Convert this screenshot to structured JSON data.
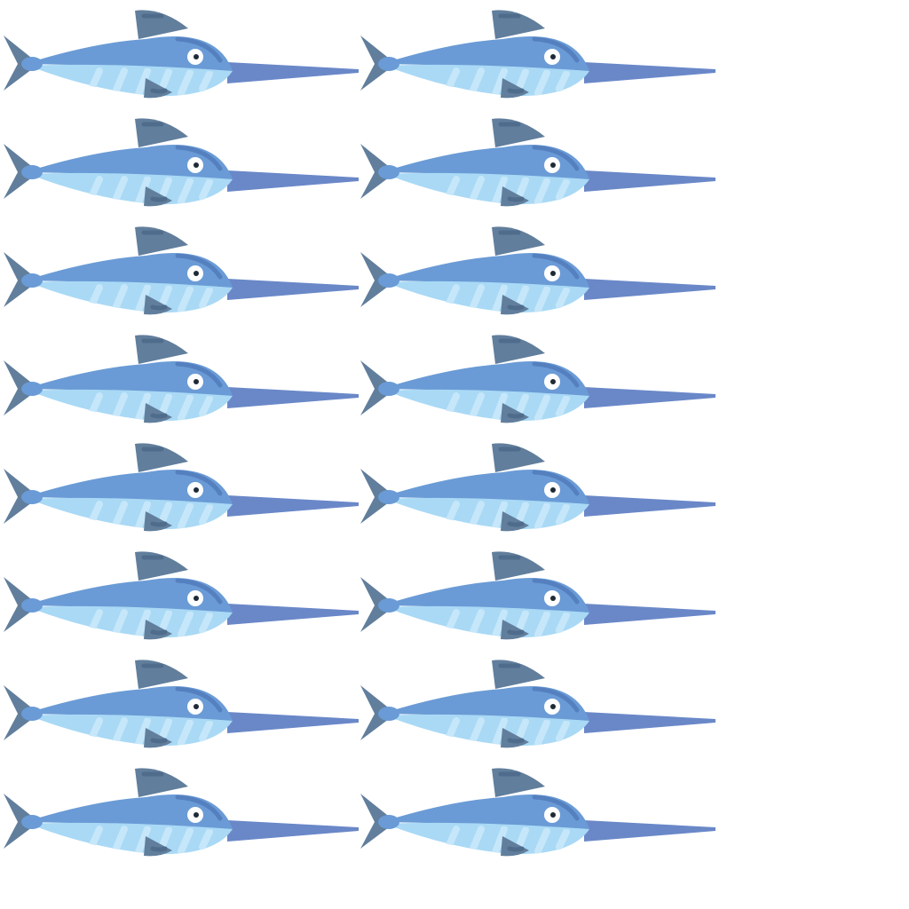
{
  "scene": {
    "subject": "swordfish",
    "icon": "swordfish-icon",
    "rows": 8,
    "columns": 2,
    "count": 16
  },
  "colors": {
    "background": "#ffffff",
    "body": "#6a9bd6",
    "belly": "#a9d9f5",
    "belly_stripe": "#c6e7fa",
    "fin": "#617e9c",
    "fin_detail": "#4f6c8c",
    "sword": "#6a88c8",
    "eye_white": "#ffffff",
    "pupil": "#1f2a36",
    "brow": "#5580bf"
  }
}
